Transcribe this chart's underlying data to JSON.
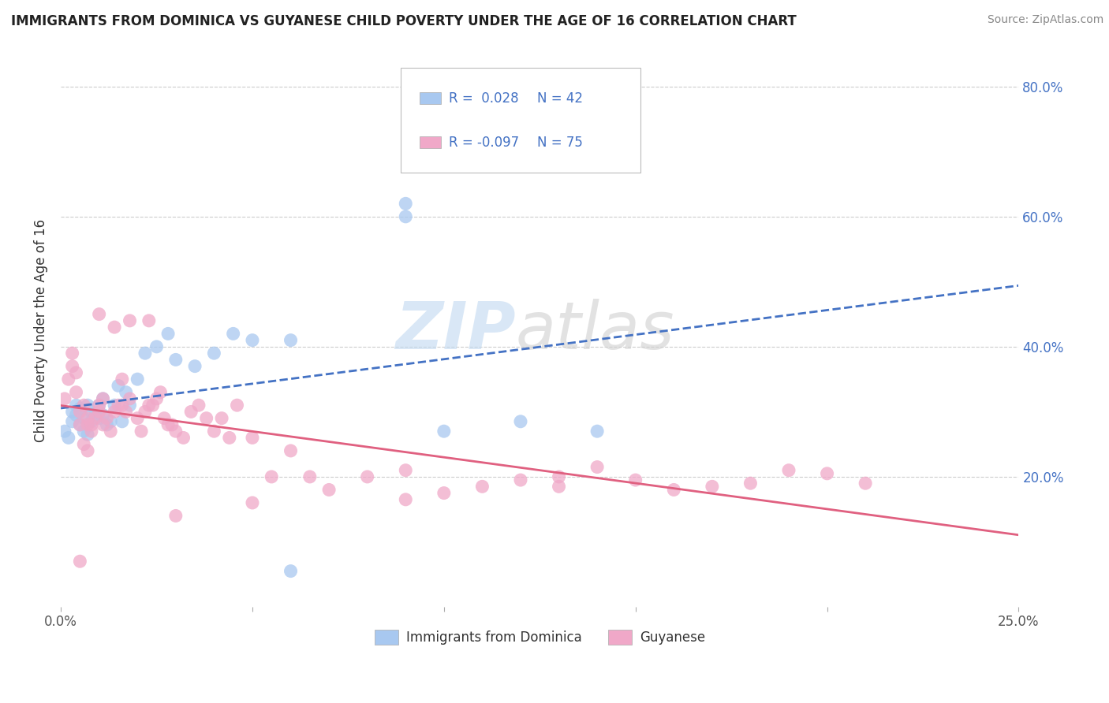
{
  "title": "IMMIGRANTS FROM DOMINICA VS GUYANESE CHILD POVERTY UNDER THE AGE OF 16 CORRELATION CHART",
  "source": "Source: ZipAtlas.com",
  "ylabel": "Child Poverty Under the Age of 16",
  "xlim": [
    0.0,
    0.25
  ],
  "ylim": [
    0.0,
    0.85
  ],
  "blue_color": "#a8c8f0",
  "pink_color": "#f0a8c8",
  "blue_line_color": "#4472c4",
  "pink_line_color": "#e06080",
  "legend_blue_R": "R =  0.028",
  "legend_blue_N": "N = 42",
  "legend_pink_R": "R = -0.097",
  "legend_pink_N": "N = 75",
  "legend_label_blue": "Immigrants from Dominica",
  "legend_label_pink": "Guyanese",
  "legend_text_color": "#4472c4",
  "blue_scatter_x": [
    0.001,
    0.002,
    0.003,
    0.003,
    0.004,
    0.004,
    0.005,
    0.005,
    0.006,
    0.006,
    0.007,
    0.007,
    0.008,
    0.008,
    0.009,
    0.01,
    0.01,
    0.011,
    0.011,
    0.012,
    0.013,
    0.014,
    0.015,
    0.016,
    0.017,
    0.018,
    0.02,
    0.022,
    0.025,
    0.028,
    0.03,
    0.035,
    0.04,
    0.045,
    0.05,
    0.06,
    0.1,
    0.12,
    0.14,
    0.09,
    0.09,
    0.06
  ],
  "blue_scatter_y": [
    0.27,
    0.26,
    0.3,
    0.285,
    0.31,
    0.295,
    0.28,
    0.305,
    0.27,
    0.29,
    0.265,
    0.31,
    0.285,
    0.3,
    0.295,
    0.31,
    0.29,
    0.32,
    0.295,
    0.28,
    0.285,
    0.31,
    0.34,
    0.285,
    0.33,
    0.31,
    0.35,
    0.39,
    0.4,
    0.42,
    0.38,
    0.37,
    0.39,
    0.42,
    0.41,
    0.41,
    0.27,
    0.285,
    0.27,
    0.62,
    0.6,
    0.055
  ],
  "pink_scatter_x": [
    0.001,
    0.002,
    0.003,
    0.003,
    0.004,
    0.004,
    0.005,
    0.005,
    0.006,
    0.006,
    0.007,
    0.007,
    0.008,
    0.008,
    0.009,
    0.01,
    0.01,
    0.011,
    0.011,
    0.012,
    0.013,
    0.014,
    0.015,
    0.016,
    0.017,
    0.018,
    0.02,
    0.021,
    0.022,
    0.023,
    0.024,
    0.025,
    0.026,
    0.027,
    0.028,
    0.029,
    0.03,
    0.032,
    0.034,
    0.036,
    0.038,
    0.04,
    0.042,
    0.044,
    0.046,
    0.05,
    0.055,
    0.06,
    0.065,
    0.07,
    0.08,
    0.09,
    0.1,
    0.11,
    0.12,
    0.13,
    0.14,
    0.15,
    0.16,
    0.17,
    0.18,
    0.19,
    0.2,
    0.21,
    0.023,
    0.018,
    0.014,
    0.01,
    0.007,
    0.005,
    0.016,
    0.03,
    0.05,
    0.09,
    0.13
  ],
  "pink_scatter_y": [
    0.32,
    0.35,
    0.37,
    0.39,
    0.36,
    0.33,
    0.28,
    0.3,
    0.31,
    0.25,
    0.24,
    0.28,
    0.27,
    0.28,
    0.29,
    0.31,
    0.3,
    0.32,
    0.28,
    0.29,
    0.27,
    0.3,
    0.31,
    0.31,
    0.3,
    0.32,
    0.29,
    0.27,
    0.3,
    0.31,
    0.31,
    0.32,
    0.33,
    0.29,
    0.28,
    0.28,
    0.27,
    0.26,
    0.3,
    0.31,
    0.29,
    0.27,
    0.29,
    0.26,
    0.31,
    0.26,
    0.2,
    0.24,
    0.2,
    0.18,
    0.2,
    0.21,
    0.175,
    0.185,
    0.195,
    0.2,
    0.215,
    0.195,
    0.18,
    0.185,
    0.19,
    0.21,
    0.205,
    0.19,
    0.44,
    0.44,
    0.43,
    0.45,
    0.29,
    0.07,
    0.35,
    0.14,
    0.16,
    0.165,
    0.185
  ]
}
